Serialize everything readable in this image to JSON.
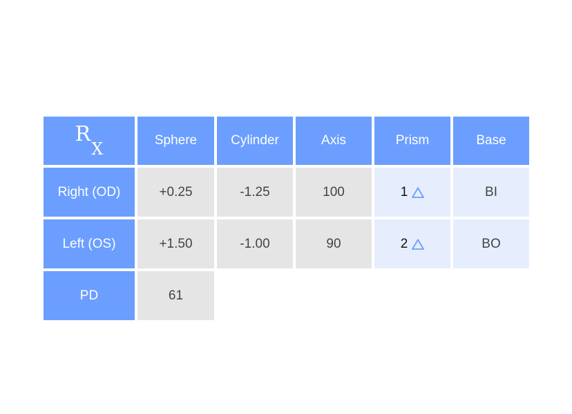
{
  "header": {
    "rx_symbol": "RX",
    "rx_r": "R",
    "rx_x": "X",
    "columns": [
      "Sphere",
      "Cylinder",
      "Axis",
      "Prism",
      "Base"
    ]
  },
  "rows": [
    {
      "label": "Right (OD)",
      "sphere": "+0.25",
      "cylinder": "-1.25",
      "axis": "100",
      "prism": "1",
      "prism_icon": "triangle-icon",
      "base": "BI"
    },
    {
      "label": "Left (OS)",
      "sphere": "+1.50",
      "cylinder": "-1.00",
      "axis": "90",
      "prism": "2",
      "prism_icon": "triangle-icon",
      "base": "BO"
    }
  ],
  "pd": {
    "label": "PD",
    "value": "61"
  },
  "colors": {
    "header": "#6b9eff",
    "cell": "#e5e5e5",
    "prism_cell": "#e6eefd",
    "triangle": "#6b9eff"
  }
}
